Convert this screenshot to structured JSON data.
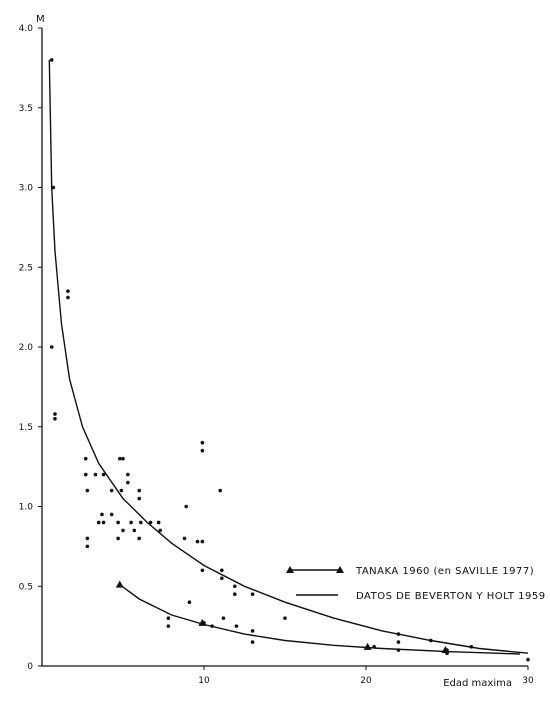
{
  "chart_data": {
    "type": "scatter",
    "ylabel": "M",
    "xlabel": "Edad maxima",
    "xlim": [
      0,
      30
    ],
    "ylim": [
      0,
      4.0
    ],
    "x_ticks": [
      {
        "value": 10,
        "label": "10"
      },
      {
        "value": 20,
        "label": "20"
      },
      {
        "value": 30,
        "label": "30"
      }
    ],
    "y_ticks": [
      {
        "value": 0,
        "label": "0"
      },
      {
        "value": 0.5,
        "label": "0.5"
      },
      {
        "value": 1.0,
        "label": "1.0"
      },
      {
        "value": 1.5,
        "label": "1.5"
      },
      {
        "value": 2.0,
        "label": "2.0"
      },
      {
        "value": 2.5,
        "label": "2.5"
      },
      {
        "value": 3.0,
        "label": "3.0"
      },
      {
        "value": 3.5,
        "label": "3.5"
      },
      {
        "value": 4.0,
        "label": "4.0"
      }
    ],
    "grid": false,
    "legend_position": "center-right",
    "series": [
      {
        "name": "DATOS DE BEVERTON Y HOLT 1959",
        "kind": "scatter+fit",
        "points": [
          [
            0.6,
            3.8
          ],
          [
            0.7,
            3.0
          ],
          [
            0.6,
            2.0
          ],
          [
            0.8,
            1.58
          ],
          [
            0.8,
            1.55
          ],
          [
            1.6,
            2.35
          ],
          [
            1.6,
            2.31
          ],
          [
            2.7,
            1.3
          ],
          [
            2.7,
            1.2
          ],
          [
            2.8,
            1.1
          ],
          [
            2.8,
            0.8
          ],
          [
            2.8,
            0.75
          ],
          [
            3.3,
            1.2
          ],
          [
            3.8,
            1.2
          ],
          [
            3.5,
            0.9
          ],
          [
            3.8,
            0.9
          ],
          [
            3.7,
            0.95
          ],
          [
            4.3,
            1.1
          ],
          [
            4.3,
            0.95
          ],
          [
            4.7,
            0.8
          ],
          [
            4.7,
            0.9
          ],
          [
            4.8,
            1.3
          ],
          [
            4.9,
            1.1
          ],
          [
            5.0,
            1.3
          ],
          [
            5.3,
            1.2
          ],
          [
            5.3,
            1.15
          ],
          [
            5.0,
            0.85
          ],
          [
            5.5,
            0.9
          ],
          [
            5.7,
            0.85
          ],
          [
            6.0,
            1.1
          ],
          [
            6.0,
            1.05
          ],
          [
            6.1,
            0.9
          ],
          [
            6.0,
            0.8
          ],
          [
            6.7,
            0.9
          ],
          [
            7.2,
            0.9
          ],
          [
            7.3,
            0.85
          ],
          [
            7.8,
            0.3
          ],
          [
            7.8,
            0.25
          ],
          [
            8.9,
            1.0
          ],
          [
            8.8,
            0.8
          ],
          [
            9.1,
            0.4
          ],
          [
            9.6,
            0.78
          ],
          [
            9.9,
            1.4
          ],
          [
            9.9,
            1.35
          ],
          [
            9.9,
            0.78
          ],
          [
            9.9,
            0.6
          ],
          [
            10.0,
            0.27
          ],
          [
            10.5,
            0.25
          ],
          [
            11.0,
            1.1
          ],
          [
            11.1,
            0.6
          ],
          [
            11.1,
            0.55
          ],
          [
            11.2,
            0.3
          ],
          [
            11.9,
            0.5
          ],
          [
            11.9,
            0.45
          ],
          [
            12.0,
            0.25
          ],
          [
            13.0,
            0.45
          ],
          [
            13.0,
            0.22
          ],
          [
            13.0,
            0.15
          ],
          [
            15.0,
            0.3
          ],
          [
            20.5,
            0.12
          ],
          [
            22.0,
            0.2
          ],
          [
            22.0,
            0.15
          ],
          [
            22.0,
            0.1
          ],
          [
            24.0,
            0.16
          ],
          [
            25.0,
            0.1
          ],
          [
            25.0,
            0.08
          ],
          [
            26.5,
            0.12
          ],
          [
            30.0,
            0.04
          ]
        ],
        "fit": [
          [
            0.45,
            3.8
          ],
          [
            0.6,
            3.0
          ],
          [
            0.8,
            2.6
          ],
          [
            1.2,
            2.15
          ],
          [
            1.7,
            1.8
          ],
          [
            2.5,
            1.5
          ],
          [
            3.5,
            1.27
          ],
          [
            5.0,
            1.05
          ],
          [
            6.5,
            0.9
          ],
          [
            8.0,
            0.77
          ],
          [
            10.0,
            0.63
          ],
          [
            12.5,
            0.5
          ],
          [
            15.0,
            0.4
          ],
          [
            18.0,
            0.3
          ],
          [
            21.0,
            0.22
          ],
          [
            24.0,
            0.16
          ],
          [
            27.0,
            0.11
          ],
          [
            30.0,
            0.08
          ]
        ]
      },
      {
        "name": "TANAKA 1960 (en SAVILLE 1977)",
        "kind": "line+triangles",
        "markers": [
          [
            4.8,
            0.51
          ],
          [
            9.9,
            0.27
          ],
          [
            20.1,
            0.12
          ],
          [
            24.9,
            0.1
          ]
        ],
        "fit": [
          [
            4.8,
            0.51
          ],
          [
            6.0,
            0.42
          ],
          [
            8.0,
            0.32
          ],
          [
            10.0,
            0.26
          ],
          [
            12.5,
            0.2
          ],
          [
            15.0,
            0.16
          ],
          [
            18.0,
            0.13
          ],
          [
            21.0,
            0.11
          ],
          [
            25.0,
            0.09
          ],
          [
            28.0,
            0.08
          ],
          [
            29.5,
            0.075
          ]
        ]
      }
    ]
  },
  "legend": [
    {
      "label": "TANAKA 1960 (en SAVILLE 1977)",
      "marker": "triangle-line"
    },
    {
      "label": "DATOS DE BEVERTON Y HOLT 1959",
      "marker": "line"
    }
  ]
}
